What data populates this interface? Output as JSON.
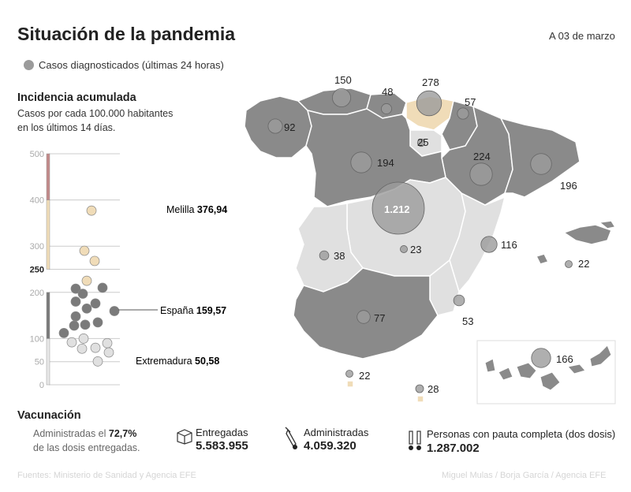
{
  "header": {
    "title": "Situación de la pandemia",
    "date": "A 03 de marzo"
  },
  "legend": {
    "label": "Casos diagnosticados (últimas 24 horas)",
    "color": "#9b9b9b"
  },
  "incidence": {
    "title": "Incidencia acumulada",
    "subtitle_line1": "Casos por cada 100.000 habitantes",
    "subtitle_line2": "en los últimos 14 días."
  },
  "chart_data": [
    {
      "type": "scatter",
      "ylim": [
        0,
        500
      ],
      "yticks": [
        "500",
        "400",
        "300",
        "250",
        "200",
        "100",
        "50",
        "0"
      ],
      "band_colors": [
        "#f0dcb8",
        "#e8e8e8",
        "#7a7a7a",
        "#c28a8a"
      ],
      "points": [
        {
          "value": 376.94,
          "color": "#f0dcb8"
        },
        {
          "value": 290,
          "color": "#f0dcb8"
        },
        {
          "value": 268,
          "color": "#f0dcb8"
        },
        {
          "value": 225,
          "color": "#f0dcb8"
        },
        {
          "value": 208,
          "color": "#7a7a7a"
        },
        {
          "value": 197,
          "color": "#7a7a7a"
        },
        {
          "value": 210,
          "color": "#7a7a7a"
        },
        {
          "value": 180,
          "color": "#7a7a7a"
        },
        {
          "value": 176,
          "color": "#7a7a7a"
        },
        {
          "value": 165,
          "color": "#7a7a7a"
        },
        {
          "value": 159.57,
          "color": "#7a7a7a"
        },
        {
          "value": 148,
          "color": "#7a7a7a"
        },
        {
          "value": 135,
          "color": "#7a7a7a"
        },
        {
          "value": 130,
          "color": "#7a7a7a"
        },
        {
          "value": 128,
          "color": "#7a7a7a"
        },
        {
          "value": 112,
          "color": "#7a7a7a"
        },
        {
          "value": 100,
          "color": "#e0e0e0"
        },
        {
          "value": 92,
          "color": "#e0e0e0"
        },
        {
          "value": 90,
          "color": "#e0e0e0"
        },
        {
          "value": 80,
          "color": "#e0e0e0"
        },
        {
          "value": 78,
          "color": "#e0e0e0"
        },
        {
          "value": 70,
          "color": "#e0e0e0"
        },
        {
          "value": 50.58,
          "color": "#e0e0e0"
        }
      ],
      "annotations": [
        {
          "name": "Melilla",
          "value": "376,94"
        },
        {
          "name": "España",
          "value": "159,57"
        },
        {
          "name": "Extremadura",
          "value": "50,58"
        }
      ]
    },
    {
      "type": "scatter",
      "series": [
        {
          "name": "Casos diagnosticados (últimas 24 horas)",
          "color": "#9b9b9b"
        }
      ],
      "labels": [
        "150",
        "48",
        "278",
        "57",
        "92",
        "25",
        "194",
        "224",
        "196",
        "1.212",
        "38",
        "23",
        "116",
        "22",
        "77",
        "53",
        "166",
        "22",
        "28"
      ],
      "values": [
        150,
        48,
        278,
        57,
        92,
        25,
        194,
        224,
        196,
        1212,
        38,
        23,
        116,
        22,
        77,
        53,
        166,
        22,
        28
      ]
    }
  ],
  "vaccination": {
    "title": "Vacunación",
    "line1_prefix": "Administradas el",
    "line1_pct": "72,7%",
    "line2": "de las dosis entregadas.",
    "delivered_label": "Entregadas",
    "delivered_value": "5.583.955",
    "administered_label": "Administradas",
    "administered_value": "4.059.320",
    "complete_label": "Personas con pauta completa (dos dosis)",
    "complete_value": "1.287.002"
  },
  "footer": {
    "source": "Fuentes: Ministerio de Sanidad y Agencia EFE",
    "credit": "Miguel Mulas / Borja García / Agencia EFE"
  }
}
